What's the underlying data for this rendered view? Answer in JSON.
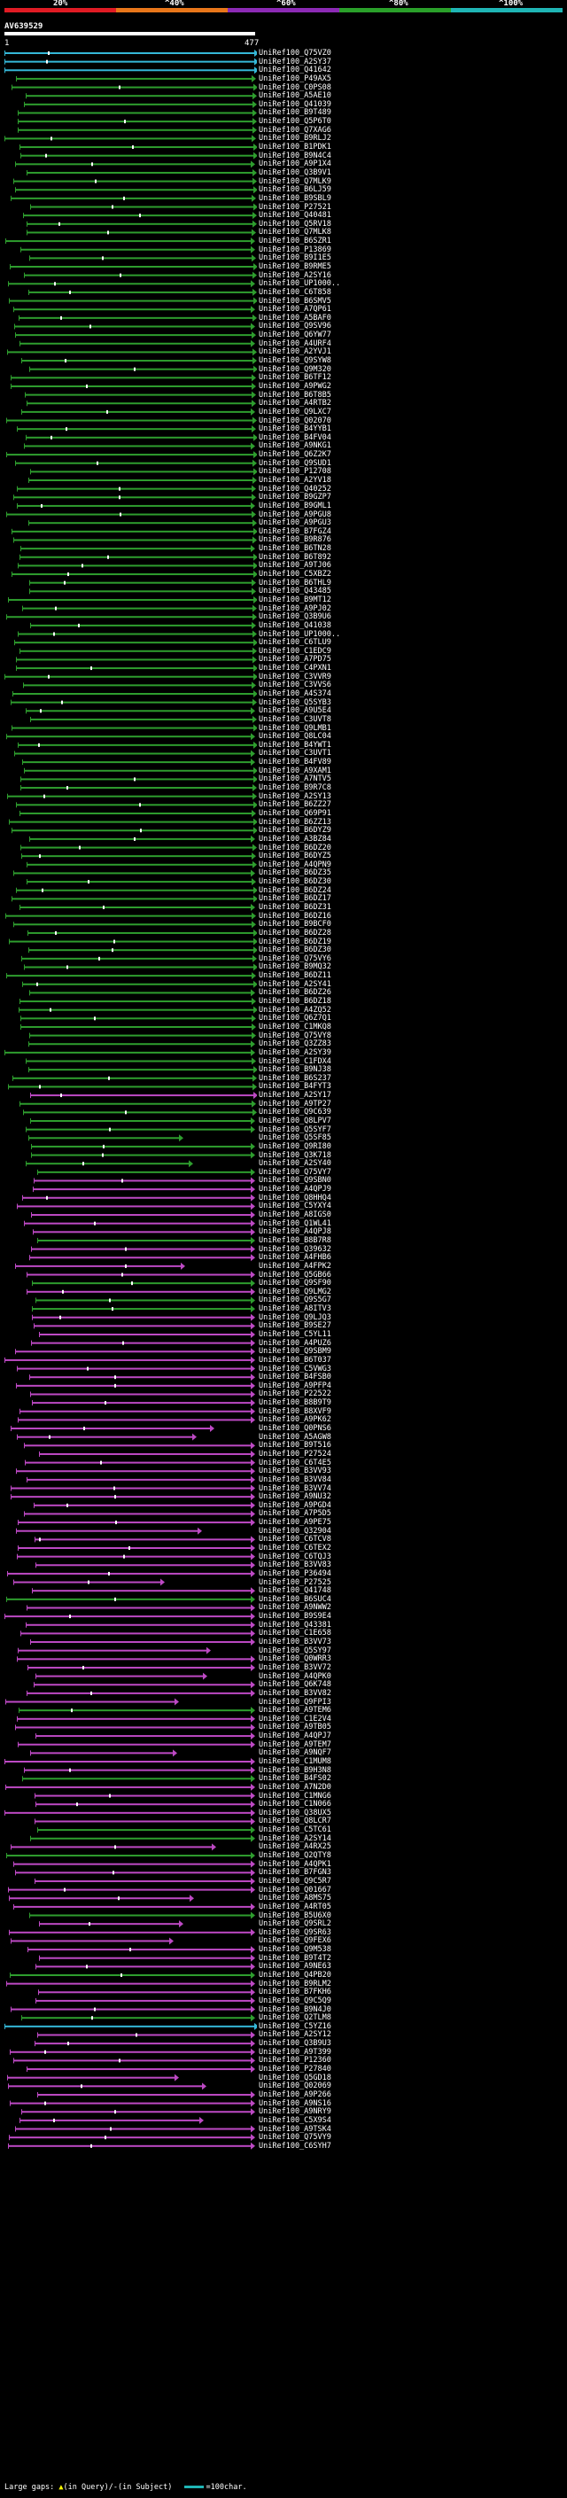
{
  "colors": {
    "background": "#000000",
    "green": "#2e9d2e",
    "magenta": "#bd49c4",
    "cyan": "#35b8d8",
    "query": "#ffffff",
    "legend": [
      "#e01b24",
      "#e8761a",
      "#8c2ab5",
      "#2aa02a",
      "#1fb5b5"
    ]
  },
  "legend": {
    "labels": [
      "20%",
      "^40%",
      "^60%",
      "^80%",
      "^100%"
    ]
  },
  "query": {
    "id": "AV639529",
    "start": "1",
    "end": "477"
  },
  "hits": [
    {
      "label": "UniRef100_Q75VZ0",
      "color": "cyan"
    },
    {
      "label": "UniRef100_A2SY37",
      "color": "cyan"
    },
    {
      "label": "UniRef100_Q41642",
      "color": "cyan"
    },
    {
      "label": "UniRef100_P49AX5",
      "color": "green"
    },
    {
      "label": "UniRef100_C0PS08",
      "color": "green"
    },
    {
      "label": "UniRef100_A5AE10",
      "color": "green"
    },
    {
      "label": "UniRef100_Q41039",
      "color": "green"
    },
    {
      "label": "UniRef100_B9T489",
      "color": "green"
    },
    {
      "label": "UniRef100_Q5P6T0",
      "color": "green"
    },
    {
      "label": "UniRef100_Q7XAG6",
      "color": "green"
    },
    {
      "label": "UniRef100_B9RLJ2",
      "color": "green"
    },
    {
      "label": "UniRef100_B1PDK1",
      "color": "green"
    },
    {
      "label": "UniRef100_B9N4C4",
      "color": "green"
    },
    {
      "label": "UniRef100_A9P1X4",
      "color": "green"
    },
    {
      "label": "UniRef100_Q3B9V1",
      "color": "green"
    },
    {
      "label": "UniRef100_Q7MLK9",
      "color": "green"
    },
    {
      "label": "UniRef100_B6LJ59",
      "color": "green"
    },
    {
      "label": "UniRef100_B9SBL9",
      "color": "green"
    },
    {
      "label": "UniRef100_P27521",
      "color": "green"
    },
    {
      "label": "UniRef100_Q40481",
      "color": "green"
    },
    {
      "label": "UniRef100_Q5RV18",
      "color": "green"
    },
    {
      "label": "UniRef100_Q7MLK8",
      "color": "green"
    },
    {
      "label": "UniRef100_B6SZR1",
      "color": "green"
    },
    {
      "label": "UniRef100_P13869",
      "color": "green"
    },
    {
      "label": "UniRef100_B9I1E5",
      "color": "green"
    },
    {
      "label": "UniRef100_B9RME5",
      "color": "green"
    },
    {
      "label": "UniRef100_A2SY16",
      "color": "green"
    },
    {
      "label": "UniRef100_UP1000..",
      "color": "green"
    },
    {
      "label": "UniRef100_C6T858",
      "color": "green"
    },
    {
      "label": "UniRef100_B6SMV5",
      "color": "green"
    },
    {
      "label": "UniRef100_A7QP61",
      "color": "green"
    },
    {
      "label": "UniRef100_A5BAF0",
      "color": "green"
    },
    {
      "label": "UniRef100_Q9SV96",
      "color": "green"
    },
    {
      "label": "UniRef100_Q6YW77",
      "color": "green"
    },
    {
      "label": "UniRef100_A4URF4",
      "color": "green"
    },
    {
      "label": "UniRef100_A2YVJ1",
      "color": "green"
    },
    {
      "label": "UniRef100_Q9SYW8",
      "color": "green"
    },
    {
      "label": "UniRef100_Q9M320",
      "color": "green"
    },
    {
      "label": "UniRef100_B6TF12",
      "color": "green"
    },
    {
      "label": "UniRef100_A9PWG2",
      "color": "green"
    },
    {
      "label": "UniRef100_B6T8B5",
      "color": "green"
    },
    {
      "label": "UniRef100_A4RTB2",
      "color": "green"
    },
    {
      "label": "UniRef100_Q9LXC7",
      "color": "green"
    },
    {
      "label": "UniRef100_Q02070",
      "color": "green"
    },
    {
      "label": "UniRef100_B4YYB1",
      "color": "green"
    },
    {
      "label": "UniRef100_B4FV04",
      "color": "green"
    },
    {
      "label": "UniRef100_A9NKG1",
      "color": "green"
    },
    {
      "label": "UniRef100_Q6Z2K7",
      "color": "green"
    },
    {
      "label": "UniRef100_Q9SUD1",
      "color": "green"
    },
    {
      "label": "UniRef100_P12708",
      "color": "green"
    },
    {
      "label": "UniRef100_A2YV18",
      "color": "green"
    },
    {
      "label": "UniRef100_Q40252",
      "color": "green"
    },
    {
      "label": "UniRef100_B9GZP7",
      "color": "green"
    },
    {
      "label": "UniRef100_B9GML1",
      "color": "green"
    },
    {
      "label": "UniRef100_A9PGU8",
      "color": "green"
    },
    {
      "label": "UniRef100_A9PGU3",
      "color": "green"
    },
    {
      "label": "UniRef100_B7FGZ4",
      "color": "green"
    },
    {
      "label": "UniRef100_B9R876",
      "color": "green"
    },
    {
      "label": "UniRef100_B6TN28",
      "color": "green"
    },
    {
      "label": "UniRef100_B6T892",
      "color": "green"
    },
    {
      "label": "UniRef100_A9TJ06",
      "color": "green"
    },
    {
      "label": "UniRef100_C5XBZ2",
      "color": "green"
    },
    {
      "label": "UniRef100_B6THL9",
      "color": "green"
    },
    {
      "label": "UniRef100_Q43485",
      "color": "green"
    },
    {
      "label": "UniRef100_B9MT12",
      "color": "green"
    },
    {
      "label": "UniRef100_A9PJ02",
      "color": "green"
    },
    {
      "label": "UniRef100_Q3B9U6",
      "color": "green"
    },
    {
      "label": "UniRef100_Q41038",
      "color": "green"
    },
    {
      "label": "UniRef100_UP1000..",
      "color": "green"
    },
    {
      "label": "UniRef100_C6TLU9",
      "color": "green"
    },
    {
      "label": "UniRef100_C1EDC9",
      "color": "green"
    },
    {
      "label": "UniRef100_A7PD75",
      "color": "green"
    },
    {
      "label": "UniRef100_C4PXN1",
      "color": "green"
    },
    {
      "label": "UniRef100_C3VVR9",
      "color": "green"
    },
    {
      "label": "UniRef100_C3VVS6",
      "color": "green"
    },
    {
      "label": "UniRef100_A4S374",
      "color": "green"
    },
    {
      "label": "UniRef100_Q5SYB3",
      "color": "green"
    },
    {
      "label": "UniRef100_A9U5E4",
      "color": "green"
    },
    {
      "label": "UniRef100_C3UVT8",
      "color": "green"
    },
    {
      "label": "UniRef100_Q9LMB1",
      "color": "green"
    },
    {
      "label": "UniRef100_Q8LC04",
      "color": "green"
    },
    {
      "label": "UniRef100_B4YWT1",
      "color": "green"
    },
    {
      "label": "UniRef100_C3UVT1",
      "color": "green"
    },
    {
      "label": "UniRef100_B4FV89",
      "color": "green"
    },
    {
      "label": "UniRef100_A9XAM1",
      "color": "green"
    },
    {
      "label": "UniRef100_A7NTV5",
      "color": "green"
    },
    {
      "label": "UniRef100_B9R7C8",
      "color": "green"
    },
    {
      "label": "UniRef100_A2SY13",
      "color": "green"
    },
    {
      "label": "UniRef100_B6ZZ27",
      "color": "green"
    },
    {
      "label": "UniRef100_Q69P91",
      "color": "green"
    },
    {
      "label": "UniRef100_B6ZZ13",
      "color": "green"
    },
    {
      "label": "UniRef100_B6DYZ9",
      "color": "green"
    },
    {
      "label": "UniRef100_A3BZ84",
      "color": "green"
    },
    {
      "label": "UniRef100_B6DZ20",
      "color": "green"
    },
    {
      "label": "UniRef100_B6DYZ5",
      "color": "green"
    },
    {
      "label": "UniRef100_A4QPN9",
      "color": "green"
    },
    {
      "label": "UniRef100_B6DZ35",
      "color": "green"
    },
    {
      "label": "UniRef100_B6DZ30",
      "color": "green"
    },
    {
      "label": "UniRef100_B6DZ24",
      "color": "green"
    },
    {
      "label": "UniRef100_B6DZ17",
      "color": "green"
    },
    {
      "label": "UniRef100_B6DZ31",
      "color": "green"
    },
    {
      "label": "UniRef100_B6DZ16",
      "color": "green"
    },
    {
      "label": "UniRef100_B9BCF0",
      "color": "green"
    },
    {
      "label": "UniRef100_B6DZ28",
      "color": "green"
    },
    {
      "label": "UniRef100_B6DZ19",
      "color": "green"
    },
    {
      "label": "UniRef100_B6DZ30",
      "color": "green"
    },
    {
      "label": "UniRef100_Q75VY6",
      "color": "green"
    },
    {
      "label": "UniRef100_B9MQ32",
      "color": "green"
    },
    {
      "label": "UniRef100_B6DZ11",
      "color": "green"
    },
    {
      "label": "UniRef100_A2SY41",
      "color": "green"
    },
    {
      "label": "UniRef100_B6DZ26",
      "color": "green"
    },
    {
      "label": "UniRef100_B6DZ18",
      "color": "green"
    },
    {
      "label": "UniRef100_A4ZQ52",
      "color": "green"
    },
    {
      "label": "UniRef100_Q6Z7Q1",
      "color": "green"
    },
    {
      "label": "UniRef100_C1MKQ8",
      "color": "green"
    },
    {
      "label": "UniRef100_Q75VY8",
      "color": "green"
    },
    {
      "label": "UniRef100_Q3ZZ83",
      "color": "green"
    },
    {
      "label": "UniRef100_A2SY39",
      "color": "green"
    },
    {
      "label": "UniRef100_C1FDX4",
      "color": "green"
    },
    {
      "label": "UniRef100_B9NJ38",
      "color": "green"
    },
    {
      "label": "UniRef100_B6S237",
      "color": "green"
    },
    {
      "label": "UniRef100_B4FYT3",
      "color": "green"
    },
    {
      "label": "UniRef100_A2SY17",
      "color": "magenta"
    },
    {
      "label": "UniRef100_A9TP27",
      "color": "green"
    },
    {
      "label": "UniRef100_Q9C639",
      "color": "green"
    },
    {
      "label": "UniRef100_Q8LPV7",
      "color": "green"
    },
    {
      "label": "UniRef100_Q5SYF7",
      "color": "green"
    },
    {
      "label": "UniRef100_Q5SF85",
      "color": "green"
    },
    {
      "label": "UniRef100_Q9RI80",
      "color": "green"
    },
    {
      "label": "UniRef100_Q3K718",
      "color": "green"
    },
    {
      "label": "UniRef100_A2SY40",
      "color": "green"
    },
    {
      "label": "UniRef100_Q75VY7",
      "color": "green"
    },
    {
      "label": "UniRef100_Q9SBN0",
      "color": "magenta"
    },
    {
      "label": "UniRef100_A4QPJ9",
      "color": "magenta"
    },
    {
      "label": "UniRef100_Q8HHQ4",
      "color": "magenta"
    },
    {
      "label": "UniRef100_C5YXY4",
      "color": "magenta"
    },
    {
      "label": "UniRef100_A8IGS0",
      "color": "magenta"
    },
    {
      "label": "UniRef100_Q1WL41",
      "color": "magenta"
    },
    {
      "label": "UniRef100_A4QPJ8",
      "color": "magenta"
    },
    {
      "label": "UniRef100_B8B7R8",
      "color": "green"
    },
    {
      "label": "UniRef100_Q39632",
      "color": "magenta"
    },
    {
      "label": "UniRef100_A4FHB6",
      "color": "magenta"
    },
    {
      "label": "UniRef100_A4FPK2",
      "color": "magenta"
    },
    {
      "label": "UniRef100_Q5GB66",
      "color": "magenta"
    },
    {
      "label": "UniRef100_Q9SF90",
      "color": "green"
    },
    {
      "label": "UniRef100_Q9LMG2",
      "color": "magenta"
    },
    {
      "label": "UniRef100_Q9S5G7",
      "color": "green"
    },
    {
      "label": "UniRef100_A8ITV3",
      "color": "green"
    },
    {
      "label": "UniRef100_Q9LJQ3",
      "color": "magenta"
    },
    {
      "label": "UniRef100_B9SE27",
      "color": "magenta"
    },
    {
      "label": "UniRef100_C5YL11",
      "color": "magenta"
    },
    {
      "label": "UniRef100_A4PUZ6",
      "color": "magenta"
    },
    {
      "label": "UniRef100_Q9SBM9",
      "color": "magenta"
    },
    {
      "label": "UniRef100_B6T037",
      "color": "magenta"
    },
    {
      "label": "UniRef100_C5VWG3",
      "color": "magenta"
    },
    {
      "label": "UniRef100_B4FSB0",
      "color": "magenta"
    },
    {
      "label": "UniRef100_A9PFP4",
      "color": "magenta"
    },
    {
      "label": "UniRef100_P22522",
      "color": "magenta"
    },
    {
      "label": "UniRef100_B8B9T9",
      "color": "magenta"
    },
    {
      "label": "UniRef100_B8XVF9",
      "color": "magenta"
    },
    {
      "label": "UniRef100_A9PK62",
      "color": "magenta"
    },
    {
      "label": "UniRef100_Q0PNS6",
      "color": "magenta"
    },
    {
      "label": "UniRef100_A5AGW8",
      "color": "magenta"
    },
    {
      "label": "UniRef100_B9T516",
      "color": "magenta"
    },
    {
      "label": "UniRef100_P27524",
      "color": "magenta"
    },
    {
      "label": "UniRef100_C6T4E5",
      "color": "magenta"
    },
    {
      "label": "UniRef100_B3VV93",
      "color": "magenta"
    },
    {
      "label": "UniRef100_B3VV84",
      "color": "magenta"
    },
    {
      "label": "UniRef100_B3VV74",
      "color": "magenta"
    },
    {
      "label": "UniRef100_A9NU32",
      "color": "magenta"
    },
    {
      "label": "UniRef100_A9PGD4",
      "color": "magenta"
    },
    {
      "label": "UniRef100_A7P5D5",
      "color": "magenta"
    },
    {
      "label": "UniRef100_A9PE75",
      "color": "magenta"
    },
    {
      "label": "UniRef100_Q32904",
      "color": "magenta"
    },
    {
      "label": "UniRef100_C6TCV8",
      "color": "magenta"
    },
    {
      "label": "UniRef100_C6TEX2",
      "color": "magenta"
    },
    {
      "label": "UniRef100_C6TQJ3",
      "color": "magenta"
    },
    {
      "label": "UniRef100_B3VV83",
      "color": "magenta"
    },
    {
      "label": "UniRef100_P36494",
      "color": "magenta"
    },
    {
      "label": "UniRef100_P27525",
      "color": "magenta"
    },
    {
      "label": "UniRef100_Q41748",
      "color": "magenta"
    },
    {
      "label": "UniRef100_B6SUC4",
      "color": "green"
    },
    {
      "label": "UniRef100_A9NWW2",
      "color": "magenta"
    },
    {
      "label": "UniRef100_B9S9E4",
      "color": "magenta"
    },
    {
      "label": "UniRef100_Q43381",
      "color": "magenta"
    },
    {
      "label": "UniRef100_C1E658",
      "color": "magenta"
    },
    {
      "label": "UniRef100_B3VV73",
      "color": "magenta"
    },
    {
      "label": "UniRef100_Q5SY97",
      "color": "magenta"
    },
    {
      "label": "UniRef100_Q0WRR3",
      "color": "magenta"
    },
    {
      "label": "UniRef100_B3VV72",
      "color": "magenta"
    },
    {
      "label": "UniRef100_A4QPK0",
      "color": "magenta"
    },
    {
      "label": "UniRef100_Q6K748",
      "color": "magenta"
    },
    {
      "label": "UniRef100_B3VV82",
      "color": "magenta"
    },
    {
      "label": "UniRef100_Q9FPI3",
      "color": "magenta"
    },
    {
      "label": "UniRef100_A9TEM6",
      "color": "green"
    },
    {
      "label": "UniRef100_C1E2V4",
      "color": "magenta"
    },
    {
      "label": "UniRef100_A9TB05",
      "color": "magenta"
    },
    {
      "label": "UniRef100_A4QPJ7",
      "color": "magenta"
    },
    {
      "label": "UniRef100_A9TEM7",
      "color": "magenta"
    },
    {
      "label": "UniRef100_A9NQF7",
      "color": "magenta"
    },
    {
      "label": "UniRef100_C1MUM8",
      "color": "magenta"
    },
    {
      "label": "UniRef100_B9H3N8",
      "color": "magenta"
    },
    {
      "label": "UniRef100_B4FS02",
      "color": "green"
    },
    {
      "label": "UniRef100_A7N2D0",
      "color": "magenta"
    },
    {
      "label": "UniRef100_C1MNG6",
      "color": "magenta"
    },
    {
      "label": "UniRef100_C1N066",
      "color": "magenta"
    },
    {
      "label": "UniRef100_Q38UX5",
      "color": "magenta"
    },
    {
      "label": "UniRef100_Q8LCR7",
      "color": "magenta"
    },
    {
      "label": "UniRef100_C5TC61",
      "color": "green"
    },
    {
      "label": "UniRef100_A2SY14",
      "color": "green"
    },
    {
      "label": "UniRef100_A4RX25",
      "color": "magenta"
    },
    {
      "label": "UniRef100_Q2QTY8",
      "color": "green"
    },
    {
      "label": "UniRef100_A4QPK1",
      "color": "magenta"
    },
    {
      "label": "UniRef100_B7FGN3",
      "color": "magenta"
    },
    {
      "label": "UniRef100_Q9C5R7",
      "color": "magenta"
    },
    {
      "label": "UniRef100_Q01667",
      "color": "magenta"
    },
    {
      "label": "UniRef100_A8MS75",
      "color": "magenta"
    },
    {
      "label": "UniRef100_A4RT05",
      "color": "magenta"
    },
    {
      "label": "UniRef100_B5U6X0",
      "color": "green"
    },
    {
      "label": "UniRef100_Q9SRL2",
      "color": "magenta"
    },
    {
      "label": "UniRef100_Q9SR63",
      "color": "magenta"
    },
    {
      "label": "UniRef100_Q9FEX6",
      "color": "magenta"
    },
    {
      "label": "UniRef100_Q9M538",
      "color": "magenta"
    },
    {
      "label": "UniRef100_B9T4T2",
      "color": "magenta"
    },
    {
      "label": "UniRef100_A9NE63",
      "color": "magenta"
    },
    {
      "label": "UniRef100_Q4PB20",
      "color": "green"
    },
    {
      "label": "UniRef100_B9RLM2",
      "color": "magenta"
    },
    {
      "label": "UniRef100_B7FKH6",
      "color": "magenta"
    },
    {
      "label": "UniRef100_Q9C5Q9",
      "color": "magenta"
    },
    {
      "label": "UniRef100_B9N4J0",
      "color": "magenta"
    },
    {
      "label": "UniRef100_Q2TLM8",
      "color": "green"
    },
    {
      "label": "UniRef100_C5YZ16",
      "color": "cyan"
    },
    {
      "label": "UniRef100_A2SY12",
      "color": "magenta"
    },
    {
      "label": "UniRef100_Q3B9U3",
      "color": "magenta"
    },
    {
      "label": "UniRef100_A9T399",
      "color": "magenta"
    },
    {
      "label": "UniRef100_P12360",
      "color": "magenta"
    },
    {
      "label": "UniRef100_P27840",
      "color": "magenta"
    },
    {
      "label": "UniRef100_Q5GD18",
      "color": "magenta"
    },
    {
      "label": "UniRef100_Q02069",
      "color": "magenta"
    },
    {
      "label": "UniRef100_A9P266",
      "color": "magenta"
    },
    {
      "label": "UniRef100_A9NS16",
      "color": "magenta"
    },
    {
      "label": "UniRef100_A9NRY9",
      "color": "magenta"
    },
    {
      "label": "UniRef100_C5X9S4",
      "color": "magenta"
    },
    {
      "label": "UniRef100_A9TSK4",
      "color": "magenta"
    },
    {
      "label": "UniRef100_Q75VY9",
      "color": "magenta"
    },
    {
      "label": "UniRef100_C6SYH7",
      "color": "magenta"
    }
  ],
  "footer": {
    "large_gaps_prefix": "Large gaps:",
    "query_marker": "▲",
    "query_text": "(in Query)/",
    "subject_marker": "-",
    "subject_text": "(in Subject)",
    "scale_text": "=100char."
  }
}
